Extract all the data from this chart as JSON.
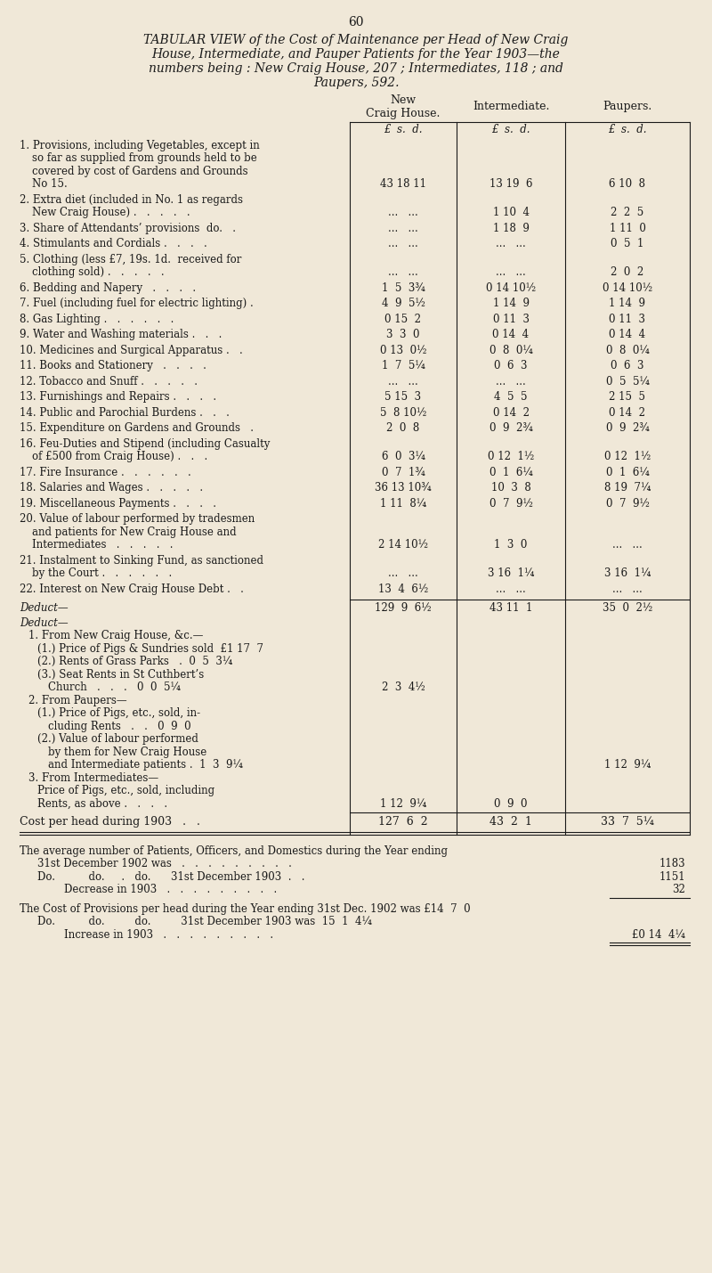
{
  "page_number": "60",
  "title_lines": [
    "TABULAR VIEW of the Cost of Maintenance per Head of New Craig",
    "House, Intermediate, and Pauper Patients for the Year 1903—the",
    "numbers being : New Craig House, 207 ; Intermediates, 118 ; and",
    "Paupers, 592."
  ],
  "bg_color": "#f0e8d8",
  "col_headers": [
    "New\nCraig House.",
    "Intermediate.",
    "Paupers."
  ],
  "sub_headers": [
    "£  s.  d.",
    "£  s.  d.",
    "£  s.  d."
  ],
  "rows": [
    {
      "num": "1.",
      "label_lines": [
        "Provisions, including Vegetables, except in",
        "so far as supplied from grounds held to be",
        "covered by cost of Gardens and Grounds",
        "No 15."
      ],
      "ncH": "43 18 11",
      "inter": "13 19  6",
      "pauper": "6 10  8",
      "data_valign": "bottom"
    },
    {
      "num": "2.",
      "label_lines": [
        "Extra diet (included in No. 1 as regards",
        "New Craig House) .   .   .   .   ."
      ],
      "ncH": "...   ...",
      "inter": "1 10  4",
      "pauper": "2  2  5",
      "data_valign": "bottom"
    },
    {
      "num": "3.",
      "label_lines": [
        "Share of Attendants’ provisions  do.   ."
      ],
      "ncH": "...   ...",
      "inter": "1 18  9",
      "pauper": "1 11  0",
      "data_valign": "top"
    },
    {
      "num": "4.",
      "label_lines": [
        "Stimulants and Cordials .   .   .   ."
      ],
      "ncH": "...   ...",
      "inter": "...   ...",
      "pauper": "0  5  1",
      "data_valign": "top"
    },
    {
      "num": "5.",
      "label_lines": [
        "Clothing (less £7, 19s. 1d.  received for",
        "clothing sold) .   .   .   .   ."
      ],
      "ncH": "...   ...",
      "inter": "...   ...",
      "pauper": "2  0  2",
      "data_valign": "bottom"
    },
    {
      "num": "6.",
      "label_lines": [
        "Bedding and Napery   .   .   .   ."
      ],
      "ncH": "1  5  3¾",
      "inter": "0 14 10½",
      "pauper": "0 14 10½",
      "data_valign": "top"
    },
    {
      "num": "7.",
      "label_lines": [
        "Fuel (including fuel for electric lighting) ."
      ],
      "ncH": "4  9  5½",
      "inter": "1 14  9",
      "pauper": "1 14  9",
      "data_valign": "top"
    },
    {
      "num": "8.",
      "label_lines": [
        "Gas Lighting .   .   .   .   .   ."
      ],
      "ncH": "0 15  2",
      "inter": "0 11  3",
      "pauper": "0 11  3",
      "data_valign": "top"
    },
    {
      "num": "9.",
      "label_lines": [
        "Water and Washing materials .   .   ."
      ],
      "ncH": "3  3  0",
      "inter": "0 14  4",
      "pauper": "0 14  4",
      "data_valign": "top"
    },
    {
      "num": "10.",
      "label_lines": [
        "Medicines and Surgical Apparatus .   ."
      ],
      "ncH": "0 13  0½",
      "inter": "0  8  0¼",
      "pauper": "0  8  0¼",
      "data_valign": "top"
    },
    {
      "num": "11.",
      "label_lines": [
        "Books and Stationery   .   .   .   ."
      ],
      "ncH": "1  7  5¼",
      "inter": "0  6  3",
      "pauper": "0  6  3",
      "data_valign": "top"
    },
    {
      "num": "12.",
      "label_lines": [
        "Tobacco and Snuff .   .   .   .   ."
      ],
      "ncH": "...   ...",
      "inter": "...   ...",
      "pauper": "0  5  5¼",
      "data_valign": "top"
    },
    {
      "num": "13.",
      "label_lines": [
        "Furnishings and Repairs .   .   .   ."
      ],
      "ncH": "5 15  3",
      "inter": "4  5  5",
      "pauper": "2 15  5",
      "data_valign": "top"
    },
    {
      "num": "14.",
      "label_lines": [
        "Public and Parochial Burdens .   .   ."
      ],
      "ncH": "5  8 10½",
      "inter": "0 14  2",
      "pauper": "0 14  2",
      "data_valign": "top"
    },
    {
      "num": "15.",
      "label_lines": [
        "Expenditure on Gardens and Grounds   ."
      ],
      "ncH": "2  0  8",
      "inter": "0  9  2¾",
      "pauper": "0  9  2¾",
      "data_valign": "top"
    },
    {
      "num": "16.",
      "label_lines": [
        "Feu-Duties and Stipend (including Casualty",
        "of £500 from Craig House) .   .   ."
      ],
      "ncH": "6  0  3¼",
      "inter": "0 12  1½",
      "pauper": "0 12  1½",
      "data_valign": "bottom"
    },
    {
      "num": "17.",
      "label_lines": [
        "Fire Insurance .   .   .   .   .   ."
      ],
      "ncH": "0  7  1¾",
      "inter": "0  1  6¼",
      "pauper": "0  1  6¼",
      "data_valign": "top"
    },
    {
      "num": "18.",
      "label_lines": [
        "Salaries and Wages .   .   .   .   ."
      ],
      "ncH": "36 13 10¾",
      "inter": "10  3  8",
      "pauper": "8 19  7¼",
      "data_valign": "top"
    },
    {
      "num": "19.",
      "label_lines": [
        "Miscellaneous Payments .   .   .   ."
      ],
      "ncH": "1 11  8¼",
      "inter": "0  7  9½",
      "pauper": "0  7  9½",
      "data_valign": "top"
    },
    {
      "num": "20.",
      "label_lines": [
        "Value of labour performed by tradesmen",
        "and patients for New Craig House and",
        "Intermediates   .   .   .   .   ."
      ],
      "ncH": "2 14 10½",
      "inter": "1  3  0",
      "pauper": "...   ...",
      "data_valign": "bottom"
    },
    {
      "num": "21.",
      "label_lines": [
        "Instalment to Sinking Fund, as sanctioned",
        "by the Court .   .   .   .   .   ."
      ],
      "ncH": "...   ...",
      "inter": "3 16  1¼",
      "pauper": "3 16  1¼",
      "data_valign": "bottom"
    },
    {
      "num": "22.",
      "label_lines": [
        "Interest on New Craig House Debt .   ."
      ],
      "ncH": "13  4  6½",
      "inter": "...   ...",
      "pauper": "...   ...",
      "data_valign": "top"
    }
  ],
  "subtotal": {
    "ncH": "129  9  6½",
    "inter": "43 11  1",
    "pauper": "35  0  2½"
  },
  "deduct_block": [
    {
      "indent": 0,
      "text": "Deduct—",
      "italic": true,
      "ncH": "",
      "inter": "",
      "pauper": ""
    },
    {
      "indent": 1,
      "text": "1. From New Craig House, &c.—",
      "italic": false,
      "ncH": "",
      "inter": "",
      "pauper": ""
    },
    {
      "indent": 2,
      "text": "(1.) Price of Pigs & Sundries sold  £1 17  7",
      "italic": false,
      "ncH": "",
      "inter": "",
      "pauper": ""
    },
    {
      "indent": 2,
      "text": "(2.) Rents of Grass Parks   .  0  5  3¼",
      "italic": false,
      "ncH": "",
      "inter": "",
      "pauper": ""
    },
    {
      "indent": 2,
      "text": "(3.) Seat Rents in St Cuthbert’s",
      "italic": false,
      "ncH": "",
      "inter": "",
      "pauper": ""
    },
    {
      "indent": 3,
      "text": "Church   .   .   .   0  0  5¼",
      "italic": false,
      "ncH": "2  3  4½",
      "inter": "",
      "pauper": ""
    },
    {
      "indent": 1,
      "text": "2. From Paupers—",
      "italic": false,
      "ncH": "",
      "inter": "",
      "pauper": ""
    },
    {
      "indent": 2,
      "text": "(1.) Price of Pigs, etc., sold, in-",
      "italic": false,
      "ncH": "",
      "inter": "",
      "pauper": ""
    },
    {
      "indent": 3,
      "text": "cluding Rents   .   .   0  9  0",
      "italic": false,
      "ncH": "",
      "inter": "",
      "pauper": ""
    },
    {
      "indent": 2,
      "text": "(2.) Value of labour performed",
      "italic": false,
      "ncH": "",
      "inter": "",
      "pauper": ""
    },
    {
      "indent": 3,
      "text": "by them for New Craig House",
      "italic": false,
      "ncH": "",
      "inter": "",
      "pauper": ""
    },
    {
      "indent": 3,
      "text": "and Intermediate patients .  1  3  9¼",
      "italic": false,
      "ncH": "",
      "inter": "",
      "pauper": "1 12  9¼"
    },
    {
      "indent": 1,
      "text": "3. From Intermediates—",
      "italic": false,
      "ncH": "",
      "inter": "",
      "pauper": ""
    },
    {
      "indent": 2,
      "text": "Price of Pigs, etc., sold, including",
      "italic": false,
      "ncH": "",
      "inter": "",
      "pauper": ""
    },
    {
      "indent": 2,
      "text": "Rents, as above .   .   .   .",
      "italic": false,
      "ncH": "1 12  9¼",
      "inter": "0  9  0",
      "pauper": ""
    }
  ],
  "cost_per_head": {
    "label": "Cost per head during 1903",
    "ncH": "127  6  2",
    "inter": "43  2  1",
    "pauper": "33  7  5¼"
  },
  "footer": [
    {
      "text": "The average number of Patients, Officers, and Domestics during the Year ending",
      "indent": 0,
      "right_val": ""
    },
    {
      "text": "31st December 1902 was   .   .   .   .   .   .   .   .   .",
      "indent": 1,
      "right_val": "1183"
    },
    {
      "text": "Do.          do.     .   do.      31st December 1903  .   .",
      "indent": 1,
      "right_val": "1151"
    },
    {
      "text": "Decrease in 1903   .   .   .   .   .   .   .   .   .",
      "indent": 4,
      "right_val": "32",
      "underline": true
    },
    {
      "text": "",
      "indent": 0,
      "right_val": ""
    },
    {
      "text": "The Cost of Provisions per head during the Year ending 31st Dec. 1902 was £14  7  0",
      "indent": 0,
      "right_val": ""
    },
    {
      "text": "Do.          do.         do.         31st December 1903 was  15  1  4¼",
      "indent": 1,
      "right_val": ""
    },
    {
      "text": "Increase in 1903   .   .   .   .   .   .   .   .   .",
      "indent": 4,
      "right_val": "£0 14  4¼",
      "underline": true,
      "double_underline": true
    }
  ]
}
